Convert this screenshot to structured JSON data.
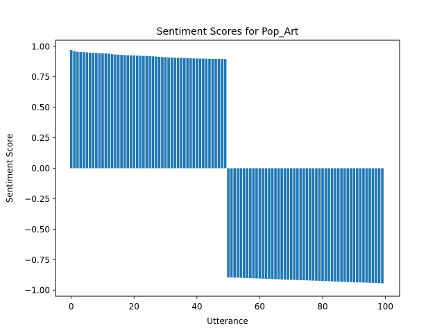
{
  "chart_data": {
    "type": "bar",
    "title": "Sentiment Scores for Pop_Art",
    "xlabel": "Utterance",
    "ylabel": "Sentiment Score",
    "xlim": [
      -5,
      104.5
    ],
    "ylim": [
      -1.05,
      1.05
    ],
    "xticks": [
      0,
      20,
      40,
      60,
      80,
      100
    ],
    "yticks": [
      -1.0,
      -0.75,
      -0.5,
      -0.25,
      0.0,
      0.25,
      0.5,
      0.75,
      1.0
    ],
    "xtick_labels": [
      "0",
      "20",
      "40",
      "60",
      "80",
      "100"
    ],
    "ytick_labels": [
      "−1.00",
      "−0.75",
      "−0.50",
      "−0.25",
      "0.00",
      "0.25",
      "0.50",
      "0.75",
      "1.00"
    ],
    "bar_color": "#1f77b4",
    "grid": false,
    "x": [
      0,
      1,
      2,
      3,
      4,
      5,
      6,
      7,
      8,
      9,
      10,
      11,
      12,
      13,
      14,
      15,
      16,
      17,
      18,
      19,
      20,
      21,
      22,
      23,
      24,
      25,
      26,
      27,
      28,
      29,
      30,
      31,
      32,
      33,
      34,
      35,
      36,
      37,
      38,
      39,
      40,
      41,
      42,
      43,
      44,
      45,
      46,
      47,
      48,
      49,
      50,
      51,
      52,
      53,
      54,
      55,
      56,
      57,
      58,
      59,
      60,
      61,
      62,
      63,
      64,
      65,
      66,
      67,
      68,
      69,
      70,
      71,
      72,
      73,
      74,
      75,
      76,
      77,
      78,
      79,
      80,
      81,
      82,
      83,
      84,
      85,
      86,
      87,
      88,
      89,
      90,
      91,
      92,
      93,
      94,
      95,
      96,
      97,
      98,
      99
    ],
    "values": [
      0.97,
      0.96,
      0.955,
      0.953,
      0.952,
      0.95,
      0.948,
      0.946,
      0.945,
      0.944,
      0.943,
      0.942,
      0.94,
      0.935,
      0.933,
      0.932,
      0.93,
      0.928,
      0.927,
      0.926,
      0.925,
      0.924,
      0.923,
      0.922,
      0.921,
      0.92,
      0.918,
      0.916,
      0.914,
      0.912,
      0.91,
      0.909,
      0.908,
      0.907,
      0.906,
      0.905,
      0.904,
      0.903,
      0.902,
      0.901,
      0.9,
      0.9,
      0.899,
      0.898,
      0.898,
      0.897,
      0.897,
      0.896,
      0.896,
      0.895,
      -0.895,
      -0.896,
      -0.897,
      -0.898,
      -0.899,
      -0.9,
      -0.901,
      -0.902,
      -0.903,
      -0.904,
      -0.905,
      -0.906,
      -0.907,
      -0.908,
      -0.909,
      -0.91,
      -0.911,
      -0.912,
      -0.913,
      -0.914,
      -0.915,
      -0.916,
      -0.917,
      -0.918,
      -0.919,
      -0.92,
      -0.921,
      -0.922,
      -0.923,
      -0.924,
      -0.925,
      -0.926,
      -0.927,
      -0.928,
      -0.929,
      -0.93,
      -0.931,
      -0.932,
      -0.933,
      -0.934,
      -0.935,
      -0.936,
      -0.937,
      -0.938,
      -0.939,
      -0.94,
      -0.941,
      -0.942,
      -0.943,
      -0.945
    ]
  }
}
